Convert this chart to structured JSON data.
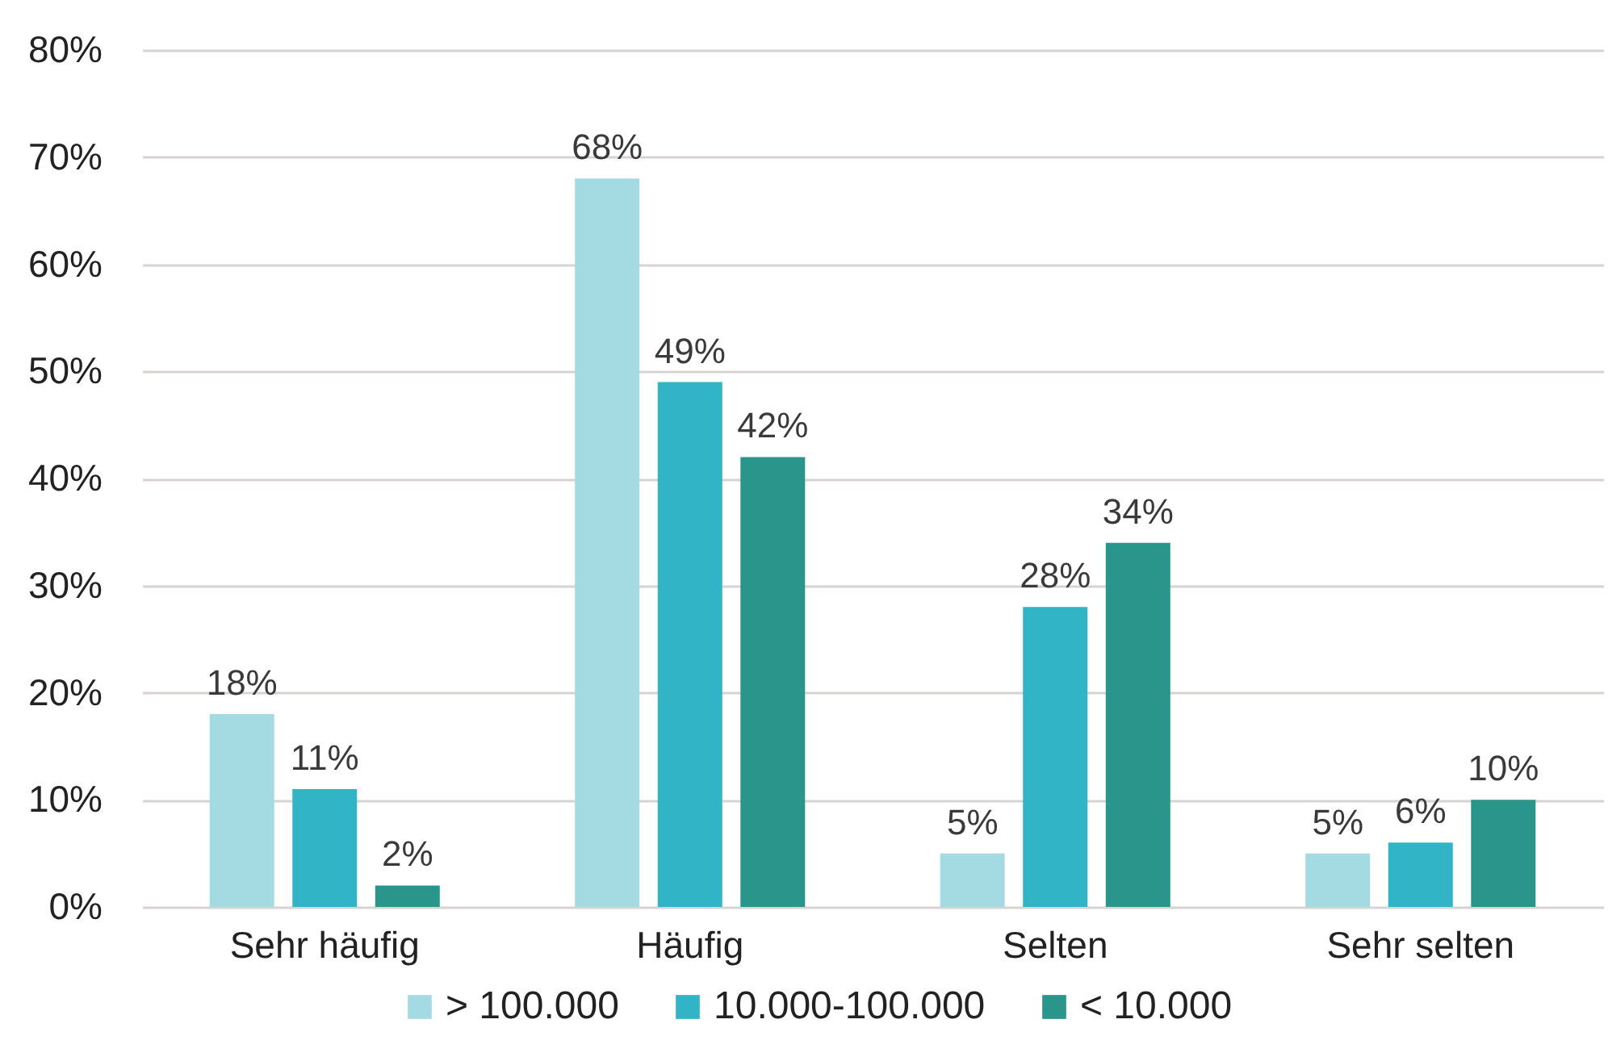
{
  "chart_data": {
    "type": "bar",
    "categories": [
      "Sehr häufig",
      "Häufig",
      "Selten",
      "Sehr selten"
    ],
    "series": [
      {
        "name": "> 100.000",
        "color": "#a4dae2",
        "values": [
          18,
          68,
          5,
          5
        ],
        "value_labels": [
          "18%",
          "68%",
          "5%",
          "5%"
        ]
      },
      {
        "name": "10.000-100.000",
        "color": "#30b4c6",
        "values": [
          11,
          49,
          28,
          6
        ],
        "value_labels": [
          "11%",
          "49%",
          "28%",
          "6%"
        ]
      },
      {
        "name": "< 10.000",
        "color": "#2a958a",
        "values": [
          2,
          42,
          34,
          10
        ],
        "value_labels": [
          "2%",
          "42%",
          "34%",
          "10%"
        ]
      }
    ],
    "ylim": [
      0,
      80
    ],
    "yticks": [
      {
        "value": 0,
        "label": "0%"
      },
      {
        "value": 10,
        "label": "10%"
      },
      {
        "value": 20,
        "label": "20%"
      },
      {
        "value": 30,
        "label": "30%"
      },
      {
        "value": 40,
        "label": "40%"
      },
      {
        "value": 50,
        "label": "50%"
      },
      {
        "value": 60,
        "label": "60%"
      },
      {
        "value": 70,
        "label": "70%"
      },
      {
        "value": 80,
        "label": "80%"
      }
    ],
    "grid": "y",
    "legend": "bottom"
  }
}
